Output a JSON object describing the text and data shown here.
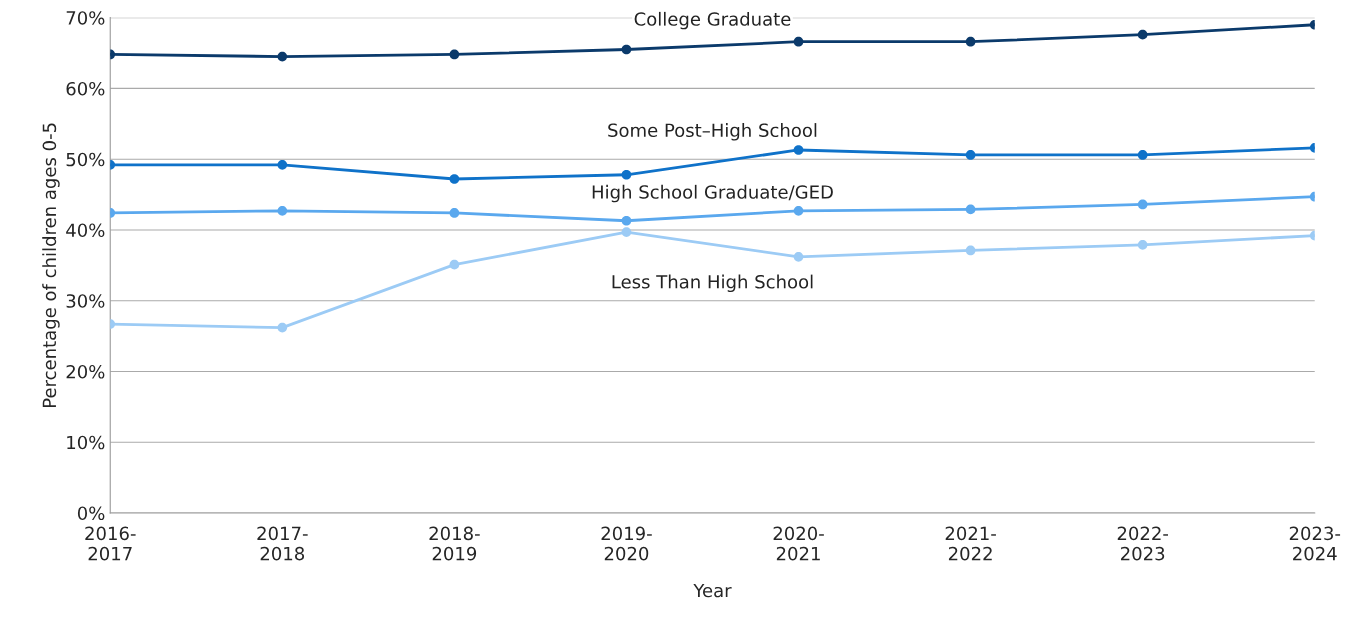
{
  "chart_data": {
    "type": "line",
    "xlabel": "Year",
    "ylabel": "Percentage of children ages 0-5",
    "categories": [
      "2016-\n2017",
      "2017-\n2018",
      "2018-\n2019",
      "2019-\n2020",
      "2020-\n2021",
      "2021-\n2022",
      "2022-\n2023",
      "2023-\n2024"
    ],
    "series": [
      {
        "name": "College Graduate",
        "color": "#0b3a6b",
        "values": [
          64.8,
          64.5,
          64.8,
          65.5,
          66.6,
          66.6,
          67.6,
          69.0
        ]
      },
      {
        "name": "Some Post–High School",
        "color": "#0f72c9",
        "values": [
          49.2,
          49.2,
          47.2,
          47.8,
          51.3,
          50.6,
          50.6,
          51.6
        ]
      },
      {
        "name": "High School Graduate/GED",
        "color": "#5aa8ee",
        "values": [
          42.4,
          42.7,
          42.4,
          41.3,
          42.7,
          42.9,
          43.6,
          44.7
        ]
      },
      {
        "name": "Less Than High School",
        "color": "#9ccbf5",
        "values": [
          26.7,
          26.2,
          35.1,
          39.7,
          36.2,
          37.1,
          37.9,
          39.2
        ]
      }
    ],
    "ylim": [
      0,
      70
    ],
    "yticks": [
      {
        "value": 0,
        "label": "0%"
      },
      {
        "value": 10,
        "label": "10%"
      },
      {
        "value": 20,
        "label": "20%"
      },
      {
        "value": 30,
        "label": "30%"
      },
      {
        "value": 40,
        "label": "40%"
      },
      {
        "value": 50,
        "label": "50%"
      },
      {
        "value": 60,
        "label": "60%"
      },
      {
        "value": 70,
        "label": "70%"
      }
    ],
    "grid": "y",
    "marker": "circle",
    "line_style": "solid",
    "legend": false
  }
}
